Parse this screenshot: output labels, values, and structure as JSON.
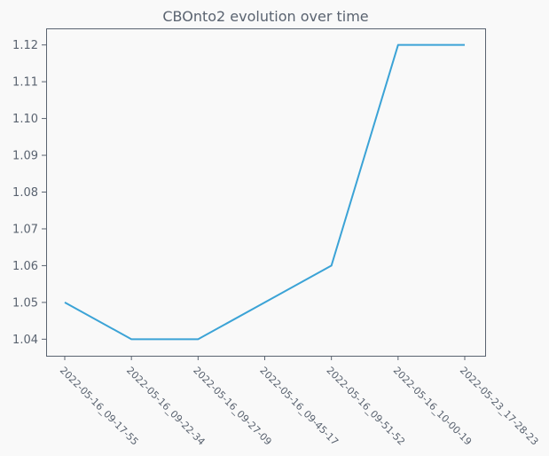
{
  "chart_data": {
    "type": "line",
    "title": "CBOnto2 evolution over time",
    "xlabel": "",
    "ylabel": "",
    "categories": [
      "2022-05-16_09-17-55",
      "2022-05-16_09-22-34",
      "2022-05-16_09-27-09",
      "2022-05-16_09-45-17",
      "2022-05-16_09-51-52",
      "2022-05-16_10-00-19",
      "2022-05-23_17-28-23"
    ],
    "series": [
      {
        "values": [
          1.05,
          1.04,
          1.04,
          1.05,
          1.06,
          1.12,
          1.12
        ],
        "color": "#3ba3d6"
      }
    ],
    "yticks": [
      "1.04",
      "1.05",
      "1.06",
      "1.07",
      "1.08",
      "1.09",
      "1.10",
      "1.11",
      "1.12"
    ],
    "ylim": [
      1.0355,
      1.1245
    ],
    "grid": false,
    "legend": "none",
    "colors": {
      "background": "#f9f9f9",
      "plot_background": "#f9f9f9",
      "axis": "#5a6370",
      "text": "#5a6370",
      "line": "#3ba3d6"
    }
  }
}
